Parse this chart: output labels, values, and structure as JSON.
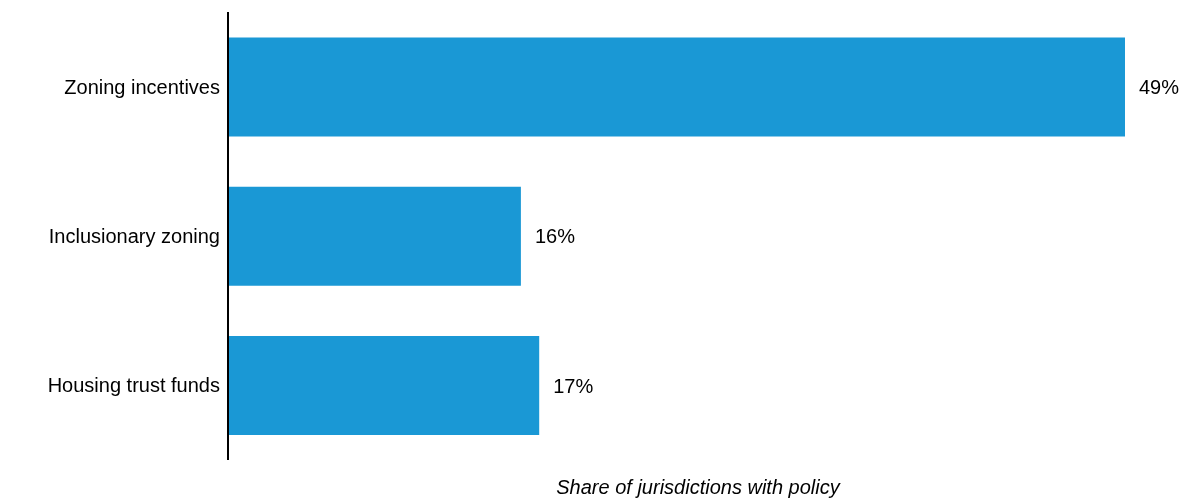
{
  "chart_data": {
    "type": "bar",
    "orientation": "horizontal",
    "xlabel": "Share of jurisdictions with policy",
    "categories": [
      "Zoning incentives",
      "Inclusionary zoning",
      "Housing trust funds"
    ],
    "values": [
      49,
      16,
      17
    ],
    "value_labels": [
      "49%",
      "16%",
      "17%"
    ],
    "color": "#1a98d5"
  }
}
